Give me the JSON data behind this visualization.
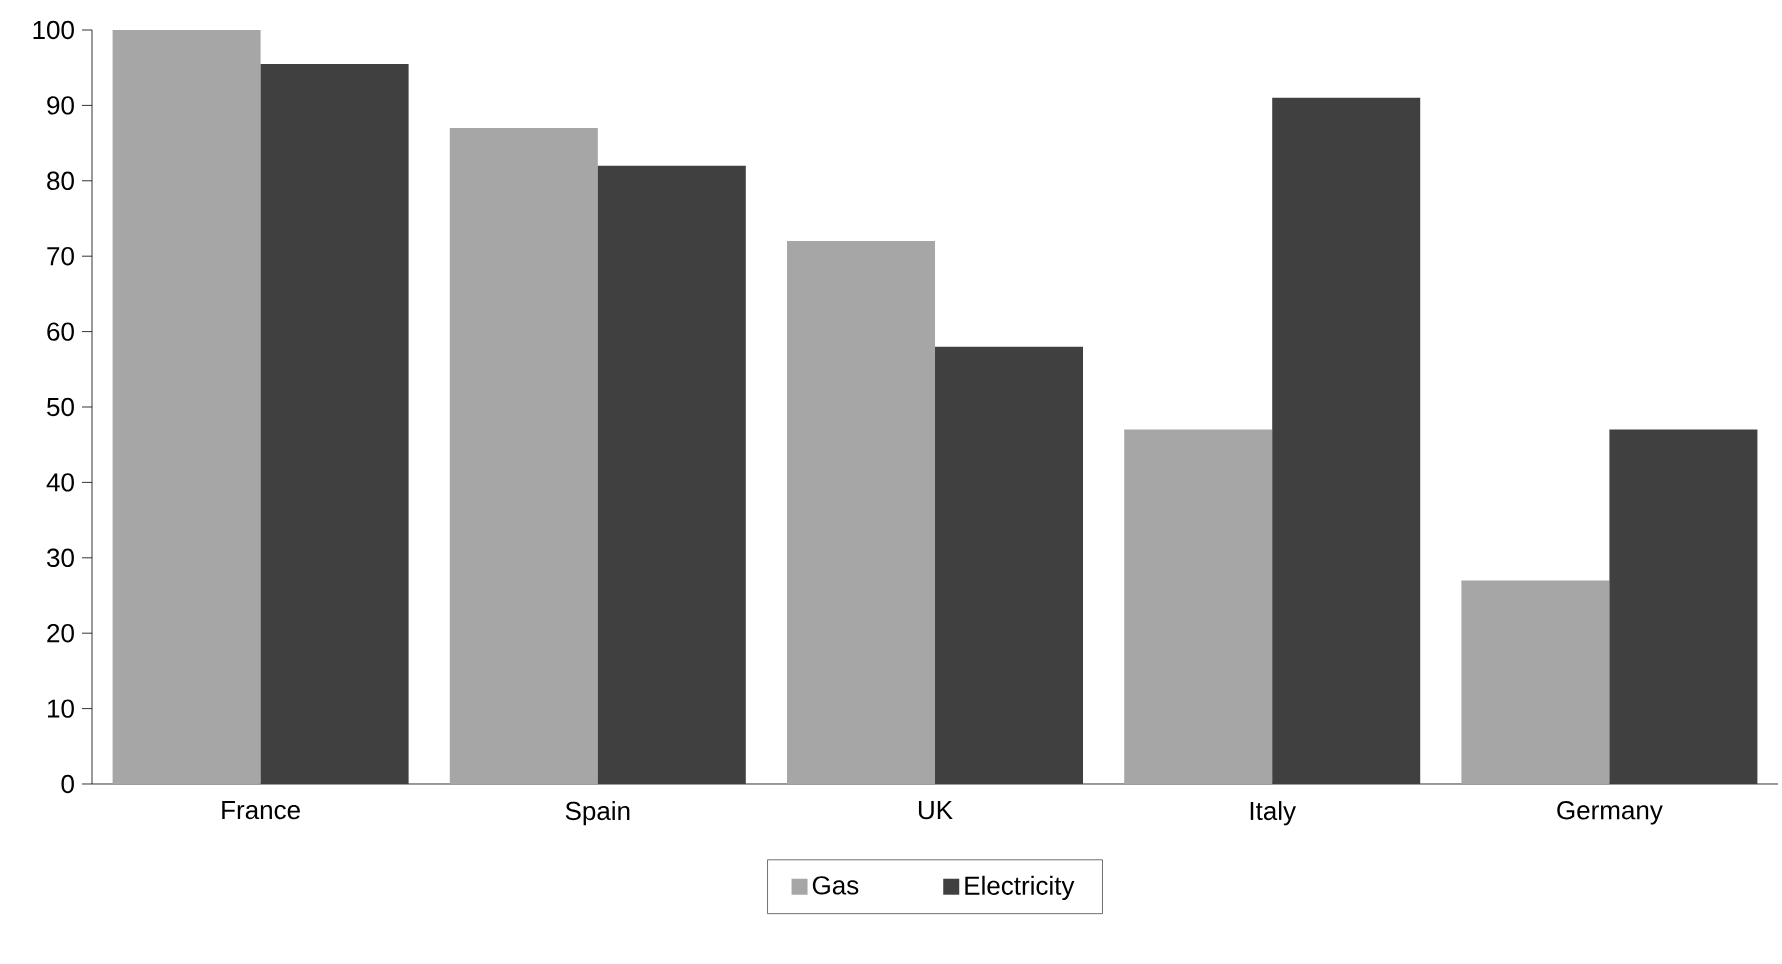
{
  "chart_data": {
    "type": "bar",
    "categories": [
      "France",
      "Spain",
      "UK",
      "Italy",
      "Germany"
    ],
    "series": [
      {
        "name": "Gas",
        "color": "#a6a6a6",
        "values": [
          100,
          87,
          72,
          47,
          27
        ]
      },
      {
        "name": "Electricity",
        "color": "#404040",
        "values": [
          95.5,
          82,
          58,
          91,
          47
        ]
      }
    ],
    "ylim": [
      0,
      100
    ],
    "yticks": [
      0,
      10,
      20,
      30,
      40,
      50,
      60,
      70,
      80,
      90,
      100
    ],
    "grid": false,
    "legend": "bottom"
  }
}
